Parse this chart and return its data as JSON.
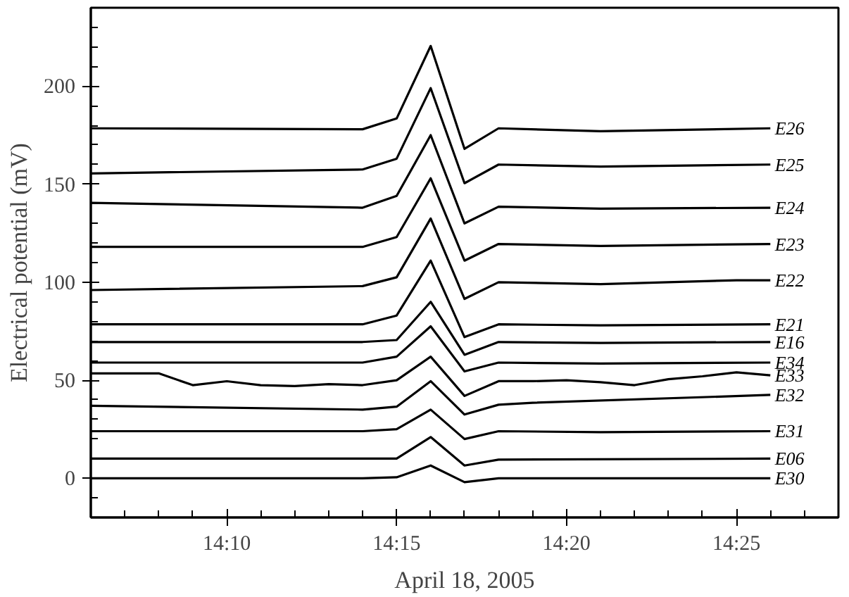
{
  "chart_data": {
    "type": "line",
    "xlabel": "April 18, 2005",
    "ylabel": "Electrical potential (mV)",
    "xlim": [
      14.1,
      14.4667
    ],
    "ylim": [
      -20,
      240
    ],
    "xticks": [
      {
        "value": 14.1,
        "label": null
      },
      {
        "value": 14.1167,
        "label": null
      },
      {
        "value": 14.1333,
        "label": null
      },
      {
        "value": 14.15,
        "label": null
      },
      {
        "value": 14.1667,
        "label": "14:10"
      },
      {
        "value": 14.1833,
        "label": null
      },
      {
        "value": 14.2,
        "label": null
      },
      {
        "value": 14.2167,
        "label": null
      },
      {
        "value": 14.2333,
        "label": null
      },
      {
        "value": 14.25,
        "label": "14:15"
      },
      {
        "value": 14.2667,
        "label": null
      },
      {
        "value": 14.2833,
        "label": null
      },
      {
        "value": 14.3,
        "label": null
      },
      {
        "value": 14.3167,
        "label": null
      },
      {
        "value": 14.3333,
        "label": "14:20"
      },
      {
        "value": 14.35,
        "label": null
      },
      {
        "value": 14.3667,
        "label": null
      },
      {
        "value": 14.3833,
        "label": null
      },
      {
        "value": 14.4,
        "label": null
      },
      {
        "value": 14.4167,
        "label": "14:25"
      },
      {
        "value": 14.4333,
        "label": null
      },
      {
        "value": 14.45,
        "label": null
      },
      {
        "value": 14.4667,
        "label": null
      }
    ],
    "yticks": [
      {
        "value": -20,
        "label": null
      },
      {
        "value": -10,
        "label": null
      },
      0,
      {
        "value": 10,
        "label": null
      },
      {
        "value": 20,
        "label": null
      },
      {
        "value": 30,
        "label": null
      },
      {
        "value": 40,
        "label": null
      },
      50,
      {
        "value": 60,
        "label": null
      },
      {
        "value": 70,
        "label": null
      },
      {
        "value": 80,
        "label": null
      },
      {
        "value": 90,
        "label": null
      },
      100,
      {
        "value": 110,
        "label": null
      },
      {
        "value": 120,
        "label": null
      },
      {
        "value": 130,
        "label": null
      },
      {
        "value": 140,
        "label": null
      },
      150,
      {
        "value": 160,
        "label": null
      },
      {
        "value": 170,
        "label": null
      },
      {
        "value": 180,
        "label": null
      },
      {
        "value": 190,
        "label": null
      },
      200,
      {
        "value": 210,
        "label": null
      },
      {
        "value": 220,
        "label": null
      },
      {
        "value": 230,
        "label": null
      },
      {
        "value": 240,
        "label": null
      }
    ],
    "grid": false,
    "legend": false,
    "line_style": "solid",
    "series": [
      {
        "name": "E26",
        "color": "#000000",
        "x": [
          14.1,
          14.2333,
          14.25,
          14.2667,
          14.2833,
          14.3,
          14.35,
          14.4333
        ],
        "values": [
          178.5,
          178,
          183.5,
          220.5,
          168,
          178.5,
          177,
          178.5
        ]
      },
      {
        "name": "E25",
        "color": "#000000",
        "x": [
          14.1,
          14.2333,
          14.25,
          14.2667,
          14.2833,
          14.3,
          14.35,
          14.4333
        ],
        "values": [
          155.5,
          157.5,
          163,
          199,
          150.5,
          160,
          159,
          160
        ]
      },
      {
        "name": "E24",
        "color": "#000000",
        "x": [
          14.1,
          14.2333,
          14.25,
          14.2667,
          14.2833,
          14.3,
          14.35,
          14.4333
        ],
        "values": [
          140.5,
          138,
          144,
          175,
          130,
          138.5,
          137.5,
          138
        ]
      },
      {
        "name": "E23",
        "color": "#000000",
        "x": [
          14.1,
          14.2333,
          14.25,
          14.2667,
          14.2833,
          14.3,
          14.35,
          14.4333
        ],
        "values": [
          118,
          118,
          123,
          153,
          111,
          119.5,
          118.5,
          119.5
        ]
      },
      {
        "name": "E22",
        "color": "#000000",
        "x": [
          14.1,
          14.2333,
          14.25,
          14.2667,
          14.2833,
          14.3,
          14.35,
          14.4167,
          14.4333
        ],
        "values": [
          96,
          98,
          102.5,
          132.5,
          91.5,
          100,
          99,
          101,
          101
        ]
      },
      {
        "name": "E21",
        "color": "#000000",
        "x": [
          14.1,
          14.2333,
          14.25,
          14.2667,
          14.2833,
          14.3,
          14.35,
          14.4333
        ],
        "values": [
          78.5,
          78.5,
          83,
          111,
          72,
          78.5,
          78,
          78.5
        ]
      },
      {
        "name": "E16",
        "color": "#000000",
        "x": [
          14.1,
          14.2333,
          14.25,
          14.2667,
          14.2833,
          14.3,
          14.35,
          14.4333
        ],
        "values": [
          69.5,
          69.5,
          70.5,
          90,
          63,
          69.5,
          69,
          69.5
        ]
      },
      {
        "name": "E34",
        "color": "#000000",
        "x": [
          14.1,
          14.2333,
          14.25,
          14.2667,
          14.2833,
          14.3,
          14.35,
          14.4333
        ],
        "values": [
          59,
          59,
          62,
          77.5,
          54.5,
          59,
          58.5,
          59
        ]
      },
      {
        "name": "E33",
        "color": "#000000",
        "x": [
          14.1,
          14.1333,
          14.15,
          14.1667,
          14.1833,
          14.2,
          14.2167,
          14.2333,
          14.25,
          14.2667,
          14.2833,
          14.3,
          14.3167,
          14.3333,
          14.35,
          14.3667,
          14.3833,
          14.4,
          14.4167,
          14.4333
        ],
        "values": [
          53.5,
          53.5,
          47.5,
          49.5,
          47.5,
          47,
          48,
          47.5,
          50,
          62,
          42,
          49.5,
          49.5,
          50,
          49,
          47.5,
          50.5,
          52,
          54,
          52.5
        ]
      },
      {
        "name": "E32",
        "color": "#000000",
        "x": [
          14.1,
          14.2333,
          14.25,
          14.2667,
          14.2833,
          14.3,
          14.3167,
          14.4333
        ],
        "values": [
          37,
          35,
          36.5,
          49.5,
          32.5,
          37.5,
          38.5,
          42.5
        ]
      },
      {
        "name": "E31",
        "color": "#000000",
        "x": [
          14.1,
          14.2333,
          14.25,
          14.2667,
          14.2833,
          14.3,
          14.35,
          14.4333
        ],
        "values": [
          24,
          24,
          25,
          35,
          20,
          24,
          23.5,
          24
        ]
      },
      {
        "name": "E06",
        "color": "#000000",
        "x": [
          14.1,
          14.2333,
          14.25,
          14.2667,
          14.2833,
          14.3,
          14.4333
        ],
        "values": [
          10,
          10,
          10,
          21,
          6.5,
          9.5,
          10
        ]
      },
      {
        "name": "E30",
        "color": "#000000",
        "x": [
          14.1,
          14.2333,
          14.25,
          14.2667,
          14.2833,
          14.3,
          14.4333
        ],
        "values": [
          0,
          0,
          0.5,
          6.5,
          -2,
          0,
          0
        ]
      }
    ]
  }
}
